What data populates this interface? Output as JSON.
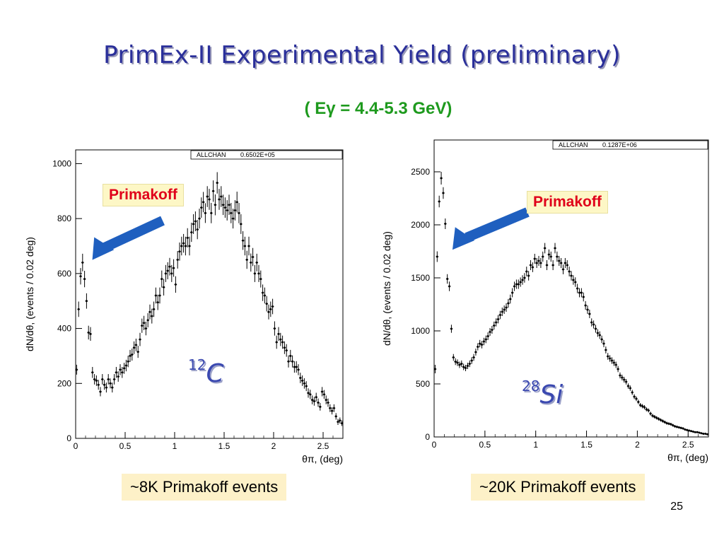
{
  "slide": {
    "title": "PrimEx-II Experimental Yield (preliminary)",
    "subtitle": "( Eγ = 4.4-5.3 GeV)",
    "page_number": "25"
  },
  "annotations": {
    "left_tag": "Primakoff",
    "right_tag": "Primakoff",
    "left_caption": "~8K Primakoff events",
    "right_caption": "~20K Primakoff events",
    "left_nucleus_mass": "12",
    "left_nucleus_symbol": "C",
    "right_nucleus_mass": "28",
    "right_nucleus_symbol": "Si",
    "arrow_color": "#1f5fbf"
  },
  "chart_data": [
    {
      "type": "scatter",
      "ylabel": "dN/dθ,   (events / 0.02 deg)",
      "xlabel": "θπ,   (deg)",
      "stats_label": "ALLCHAN",
      "stats_value": "0.6502E+05",
      "xlim": [
        0,
        2.7
      ],
      "ylim": [
        0,
        1050
      ],
      "xticks": [
        "0",
        "0.5",
        "1",
        "1.5",
        "2",
        "2.5"
      ],
      "yticks": [
        "0",
        "200",
        "400",
        "600",
        "800",
        "1000"
      ],
      "x": [
        0.01,
        0.03,
        0.05,
        0.07,
        0.09,
        0.11,
        0.13,
        0.15,
        0.17,
        0.19,
        0.21,
        0.23,
        0.25,
        0.27,
        0.29,
        0.31,
        0.33,
        0.35,
        0.37,
        0.39,
        0.41,
        0.43,
        0.45,
        0.47,
        0.49,
        0.51,
        0.53,
        0.55,
        0.57,
        0.59,
        0.61,
        0.63,
        0.65,
        0.67,
        0.69,
        0.71,
        0.73,
        0.75,
        0.77,
        0.79,
        0.81,
        0.83,
        0.85,
        0.87,
        0.89,
        0.91,
        0.93,
        0.95,
        0.97,
        0.99,
        1.01,
        1.03,
        1.05,
        1.07,
        1.09,
        1.11,
        1.13,
        1.15,
        1.17,
        1.19,
        1.21,
        1.23,
        1.25,
        1.27,
        1.29,
        1.31,
        1.33,
        1.35,
        1.37,
        1.39,
        1.41,
        1.43,
        1.45,
        1.47,
        1.49,
        1.51,
        1.53,
        1.55,
        1.57,
        1.59,
        1.61,
        1.63,
        1.65,
        1.67,
        1.69,
        1.71,
        1.73,
        1.75,
        1.77,
        1.79,
        1.81,
        1.83,
        1.85,
        1.87,
        1.89,
        1.91,
        1.93,
        1.95,
        1.97,
        1.99,
        2.01,
        2.03,
        2.05,
        2.07,
        2.09,
        2.11,
        2.13,
        2.15,
        2.17,
        2.19,
        2.21,
        2.23,
        2.25,
        2.27,
        2.29,
        2.31,
        2.33,
        2.35,
        2.37,
        2.39,
        2.41,
        2.43,
        2.45,
        2.47,
        2.49,
        2.51,
        2.53,
        2.55,
        2.57,
        2.59,
        2.61,
        2.63,
        2.65,
        2.67,
        2.69
      ],
      "y": [
        250,
        470,
        590,
        640,
        580,
        500,
        385,
        380,
        240,
        215,
        210,
        195,
        170,
        215,
        195,
        185,
        215,
        200,
        185,
        215,
        240,
        225,
        250,
        240,
        255,
        265,
        280,
        300,
        305,
        330,
        340,
        315,
        360,
        410,
        420,
        400,
        430,
        460,
        445,
        470,
        520,
        495,
        520,
        580,
        550,
        600,
        610,
        625,
        600,
        620,
        560,
        650,
        680,
        700,
        710,
        700,
        730,
        700,
        750,
        780,
        790,
        760,
        800,
        840,
        860,
        820,
        880,
        870,
        820,
        900,
        850,
        930,
        870,
        880,
        850,
        840,
        830,
        850,
        820,
        800,
        830,
        860,
        820,
        780,
        720,
        700,
        650,
        700,
        640,
        660,
        600,
        640,
        600,
        580,
        530,
        520,
        490,
        460,
        470,
        480,
        400,
        350,
        380,
        360,
        350,
        330,
        320,
        280,
        300,
        280,
        260,
        260,
        250,
        220,
        210,
        200,
        190,
        165,
        160,
        140,
        135,
        150,
        130,
        115,
        170,
        160,
        140,
        130,
        110,
        100,
        110,
        80,
        60,
        65,
        55
      ],
      "err": [
        18,
        28,
        30,
        32,
        30,
        28,
        25,
        25,
        20,
        19,
        19,
        18,
        17,
        19,
        18,
        18,
        19,
        18,
        18,
        19,
        20,
        19,
        20,
        20,
        20,
        21,
        21,
        22,
        22,
        23,
        23,
        22,
        24,
        26,
        26,
        25,
        26,
        27,
        27,
        28,
        29,
        28,
        29,
        31,
        30,
        31,
        31,
        32,
        31,
        32,
        30,
        32,
        33,
        34,
        34,
        34,
        35,
        34,
        35,
        36,
        36,
        35,
        36,
        37,
        37,
        36,
        38,
        38,
        37,
        39,
        38,
        39,
        38,
        38,
        37,
        37,
        37,
        37,
        37,
        36,
        37,
        38,
        37,
        36,
        34,
        34,
        33,
        34,
        33,
        33,
        31,
        32,
        31,
        31,
        30,
        29,
        28,
        27,
        28,
        28,
        26,
        24,
        25,
        24,
        24,
        23,
        23,
        22,
        22,
        22,
        21,
        21,
        20,
        19,
        19,
        19,
        18,
        17,
        17,
        16,
        16,
        16,
        15,
        14,
        17,
        16,
        16,
        15,
        14,
        13,
        14,
        12,
        11,
        11,
        10
      ]
    },
    {
      "type": "scatter",
      "ylabel": "dN/dθ,   (events / 0.02 deg)",
      "xlabel": "θπ,   (deg)",
      "stats_label": "ALLCHAN",
      "stats_value": "0.1287E+06",
      "xlim": [
        0,
        2.7
      ],
      "ylim": [
        0,
        2800
      ],
      "xticks": [
        "0",
        "0.5",
        "1",
        "1.5",
        "2",
        "2.5"
      ],
      "yticks": [
        "0",
        "500",
        "1000",
        "1500",
        "2000",
        "2500"
      ],
      "x": [
        0.01,
        0.03,
        0.05,
        0.07,
        0.09,
        0.11,
        0.13,
        0.15,
        0.17,
        0.19,
        0.21,
        0.23,
        0.25,
        0.27,
        0.29,
        0.31,
        0.33,
        0.35,
        0.37,
        0.39,
        0.41,
        0.43,
        0.45,
        0.47,
        0.49,
        0.51,
        0.53,
        0.55,
        0.57,
        0.59,
        0.61,
        0.63,
        0.65,
        0.67,
        0.69,
        0.71,
        0.73,
        0.75,
        0.77,
        0.79,
        0.81,
        0.83,
        0.85,
        0.87,
        0.89,
        0.91,
        0.93,
        0.95,
        0.97,
        0.99,
        1.01,
        1.03,
        1.05,
        1.07,
        1.09,
        1.11,
        1.13,
        1.15,
        1.17,
        1.19,
        1.21,
        1.23,
        1.25,
        1.27,
        1.29,
        1.31,
        1.33,
        1.35,
        1.37,
        1.39,
        1.41,
        1.43,
        1.45,
        1.47,
        1.49,
        1.51,
        1.53,
        1.55,
        1.57,
        1.59,
        1.61,
        1.63,
        1.65,
        1.67,
        1.69,
        1.71,
        1.73,
        1.75,
        1.77,
        1.79,
        1.81,
        1.83,
        1.85,
        1.87,
        1.89,
        1.91,
        1.93,
        1.95,
        1.97,
        1.99,
        2.01,
        2.03,
        2.05,
        2.07,
        2.09,
        2.11,
        2.13,
        2.15,
        2.17,
        2.19,
        2.21,
        2.23,
        2.25,
        2.27,
        2.29,
        2.31,
        2.33,
        2.35,
        2.37,
        2.39,
        2.41,
        2.43,
        2.45,
        2.47,
        2.49,
        2.51,
        2.53,
        2.55,
        2.57,
        2.59,
        2.61,
        2.63,
        2.65,
        2.67,
        2.69
      ],
      "y": [
        640,
        1700,
        2220,
        2440,
        2300,
        2010,
        1490,
        1420,
        1020,
        750,
        710,
        700,
        680,
        690,
        660,
        650,
        670,
        690,
        720,
        750,
        800,
        850,
        880,
        870,
        900,
        920,
        950,
        990,
        1010,
        1050,
        1080,
        1110,
        1150,
        1180,
        1200,
        1220,
        1260,
        1300,
        1360,
        1420,
        1440,
        1440,
        1460,
        1480,
        1500,
        1560,
        1520,
        1620,
        1600,
        1680,
        1640,
        1660,
        1640,
        1700,
        1780,
        1620,
        1720,
        1700,
        1620,
        1780,
        1700,
        1660,
        1640,
        1580,
        1640,
        1620,
        1560,
        1520,
        1480,
        1460,
        1400,
        1360,
        1360,
        1320,
        1240,
        1200,
        1160,
        1080,
        1060,
        1020,
        980,
        960,
        920,
        880,
        820,
        760,
        740,
        720,
        700,
        680,
        640,
        580,
        560,
        540,
        520,
        480,
        460,
        420,
        380,
        360,
        330,
        300,
        290,
        280,
        260,
        250,
        220,
        200,
        190,
        180,
        170,
        160,
        150,
        140,
        130,
        125,
        120,
        110,
        100,
        95,
        90,
        85,
        80,
        70,
        65,
        60,
        55,
        50,
        45,
        45,
        40,
        35,
        30,
        30,
        25
      ],
      "err": [
        40,
        50,
        55,
        60,
        55,
        50,
        45,
        45,
        38,
        32,
        32,
        31,
        30,
        31,
        30,
        30,
        30,
        31,
        32,
        32,
        33,
        34,
        35,
        35,
        35,
        36,
        36,
        37,
        37,
        38,
        38,
        39,
        39,
        40,
        40,
        40,
        41,
        42,
        43,
        44,
        44,
        44,
        44,
        45,
        45,
        46,
        45,
        47,
        46,
        47,
        47,
        47,
        47,
        48,
        49,
        47,
        48,
        48,
        47,
        49,
        48,
        47,
        47,
        46,
        47,
        47,
        46,
        45,
        45,
        45,
        44,
        43,
        43,
        42,
        41,
        40,
        40,
        38,
        38,
        37,
        36,
        36,
        35,
        34,
        33,
        32,
        31,
        31,
        30,
        30,
        29,
        28,
        27,
        27,
        26,
        25,
        25,
        24,
        23,
        22,
        21,
        20,
        20,
        20,
        19,
        19,
        18,
        17,
        17,
        16,
        16,
        15,
        15,
        14,
        14,
        13,
        13,
        13,
        12,
        12,
        11,
        11,
        11,
        10,
        10,
        9,
        9,
        8,
        8,
        8,
        7,
        7,
        6,
        6,
        6
      ]
    }
  ]
}
